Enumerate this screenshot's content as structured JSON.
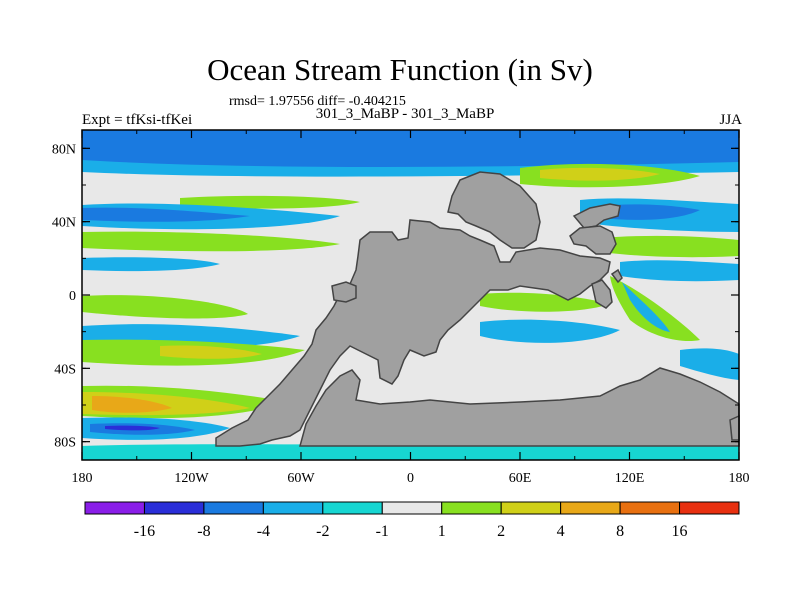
{
  "header": {
    "title": "Ocean Stream Function (in Sv)",
    "stats": "rmsd= 1.97556 diff= -0.404215",
    "center_label": "301_3_MaBP - 301_3_MaBP",
    "left_label": "Expt = tfKsi-tfKei",
    "right_label": "JJA"
  },
  "chart_data": {
    "type": "heatmap",
    "title": "Ocean Stream Function (in Sv)",
    "xlabel": "",
    "ylabel": "",
    "xlim": [
      -180,
      180
    ],
    "ylim": [
      -90,
      90
    ],
    "x_ticks": [
      "180",
      "120W",
      "60W",
      "0",
      "60E",
      "120E",
      "180"
    ],
    "y_ticks": [
      "80N",
      "40N",
      "0",
      "40S",
      "80S"
    ],
    "colorbar": {
      "labels": [
        "-16",
        "-8",
        "-4",
        "-2",
        "-1",
        "1",
        "2",
        "4",
        "8",
        "16"
      ],
      "colors": [
        "#8a1ee8",
        "#2a2ed8",
        "#1a7ae0",
        "#1aaee8",
        "#17d6d2",
        "#e8e8e8",
        "#88e020",
        "#d0d018",
        "#e8a818",
        "#e87010",
        "#e83010"
      ]
    },
    "colors": {
      "land": "#a0a0a0",
      "coast": "#444444",
      "background": "#e8e8e8"
    }
  }
}
